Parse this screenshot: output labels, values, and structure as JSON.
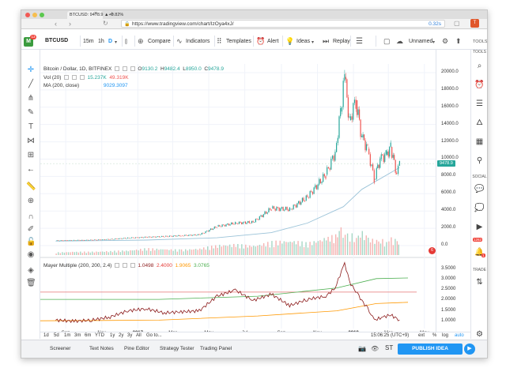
{
  "browser": {
    "url": "https://www.tradingview.com/chart/IzOya4xJ/",
    "load_time": "0.32s",
    "tab_title": "BTCUSD: 9478.9 ▲+3.82%",
    "extension_badge": "T"
  },
  "toolbar": {
    "logo_badge": "13",
    "symbol": "BTCUSD",
    "intervals": [
      "15m",
      "1h",
      "D"
    ],
    "compare": "Compare",
    "indicators": "Indicators",
    "templates": "Templates",
    "alert": "Alert",
    "ideas": "Ideas",
    "replay": "Replay",
    "layout_name": "Unnamed",
    "tools_label": "TOOLS"
  },
  "legend": {
    "title": "Bitcoin / Dollar, 1D, BITFINEX",
    "open_label": "O",
    "open": "9130.2",
    "high_label": "H",
    "high": "9482.4",
    "low_label": "L",
    "low": "8950.0",
    "close_label": "C",
    "close": "9478.9",
    "vol_label": "Vol (20)",
    "vol_value1": "15.237K",
    "vol_value2": "49.319K",
    "ma_label": "MA (200, close)",
    "ma_value": "9029.3097",
    "mayer_label": "Mayer Multiple (200, 200, 2.4)",
    "mayer_v1": "1.0498",
    "mayer_v2": "2.4000",
    "mayer_v3": "1.9065",
    "mayer_v4": "3.0765"
  },
  "price_scale": {
    "main_ticks": [
      "20000.0",
      "18000.0",
      "16000.0",
      "14000.0",
      "12000.0",
      "10000.0",
      "8000.0",
      "6000.0",
      "4000.0",
      "2000.0",
      "0.0"
    ],
    "last_price": "9478.9",
    "lower_ticks": [
      "3.5000",
      "3.0000",
      "2.5000",
      "2.0000",
      "1.5000",
      "1.0000"
    ],
    "flag_badge": "6"
  },
  "time_axis": {
    "labels": [
      "Sep",
      "Nov",
      "2017",
      "Mar",
      "May",
      "Jul",
      "Sep",
      "Nov",
      "2018",
      "Mar",
      "May"
    ]
  },
  "range_bar": {
    "items": [
      "1d",
      "5d",
      "1m",
      "3m",
      "6m",
      "YTD",
      "1y",
      "2y",
      "3y",
      "All",
      "Go to..."
    ],
    "clock": "15:06:25 (UTC+9)",
    "ext": "ext",
    "percent": "%",
    "log": "log",
    "auto": "auto"
  },
  "right_sidebar": {
    "tools_label": "TOOLS",
    "social_label": "SOCIAL",
    "trade_label": "TRADE",
    "badge_chat": "1262",
    "badge_notif": "1"
  },
  "bottom_bar": {
    "screener": "Screener",
    "text_notes": "Text Notes",
    "pine_editor": "Pine Editor",
    "strategy_tester": "Strategy Tester",
    "trading_panel": "Trading Panel",
    "publish": "PUBLISH IDEA",
    "st": "ST"
  },
  "colors": {
    "accent": "#2196f3",
    "up": "#26a69a",
    "down": "#ef5350",
    "ma_line": "#9bc3d8",
    "mayer_line": "#8b1a1a",
    "green_band": "#4caf50",
    "orange_band": "#ff9800",
    "red_band": "#e57373"
  },
  "chart_data": {
    "type": "line",
    "title": "Bitcoin / Dollar, 1D, BITFINEX",
    "price_series": {
      "name": "BTCUSD",
      "x": [
        "2016-08",
        "2016-09",
        "2016-10",
        "2016-11",
        "2016-12",
        "2017-01",
        "2017-02",
        "2017-03",
        "2017-04",
        "2017-05",
        "2017-06",
        "2017-07",
        "2017-08",
        "2017-09",
        "2017-10",
        "2017-11",
        "2017-12-01",
        "2017-12-10",
        "2017-12-17",
        "2017-12-25",
        "2018-01-05",
        "2018-01-15",
        "2018-01-25",
        "2018-02-05",
        "2018-02-15",
        "2018-02-25",
        "2018-03-05",
        "2018-03-15",
        "2018-03-20"
      ],
      "values": [
        580,
        610,
        640,
        720,
        880,
        970,
        1050,
        1150,
        1250,
        2200,
        2600,
        2700,
        4300,
        4200,
        5600,
        8200,
        10800,
        15500,
        19500,
        14500,
        16800,
        12500,
        11200,
        7700,
        10000,
        10500,
        11400,
        8300,
        9478.9
      ]
    },
    "ma_series": {
      "name": "MA (200, close)",
      "x": [
        "2016-08",
        "2017-01",
        "2017-05",
        "2017-08",
        "2017-10",
        "2017-12",
        "2018-01",
        "2018-03-20"
      ],
      "values": [
        520,
        640,
        900,
        1500,
        2600,
        4500,
        6500,
        9029.3
      ]
    },
    "mayer_series": {
      "name": "Mayer Multiple (200, 200, 2.4)",
      "x": [
        "2016-08",
        "2016-09",
        "2016-10",
        "2016-11",
        "2016-12",
        "2017-01",
        "2017-02",
        "2017-03",
        "2017-04",
        "2017-05",
        "2017-06",
        "2017-07",
        "2017-08",
        "2017-09",
        "2017-10",
        "2017-11",
        "2017-12-01",
        "2017-12-17",
        "2017-12-25",
        "2018-01-10",
        "2018-01-25",
        "2018-02-05",
        "2018-02-20",
        "2018-03-05",
        "2018-03-20"
      ],
      "values": [
        1.05,
        1.0,
        1.05,
        1.2,
        1.5,
        1.6,
        1.4,
        1.45,
        1.5,
        2.2,
        2.5,
        2.0,
        2.3,
        1.75,
        2.05,
        2.2,
        2.6,
        3.8,
        2.9,
        2.2,
        1.6,
        1.05,
        1.2,
        1.3,
        1.05
      ]
    },
    "bands": {
      "upper": 2.4,
      "green_end": 3.08,
      "orange_end": 1.91
    },
    "price_ylim": [
      0,
      21000
    ],
    "mayer_ylim": [
      0.8,
      3.8
    ],
    "volume_values": [
      0.4,
      0.5,
      0.5,
      0.6,
      0.7,
      1.0,
      0.9,
      0.8,
      1.0,
      1.5,
      1.6,
      1.4,
      2.0,
      2.2,
      1.8,
      2.6,
      3.0,
      4.0,
      3.6,
      3.2,
      2.8,
      3.4,
      2.6,
      2.2,
      2.4,
      2.0,
      2.5,
      2.2,
      1.5
    ]
  }
}
